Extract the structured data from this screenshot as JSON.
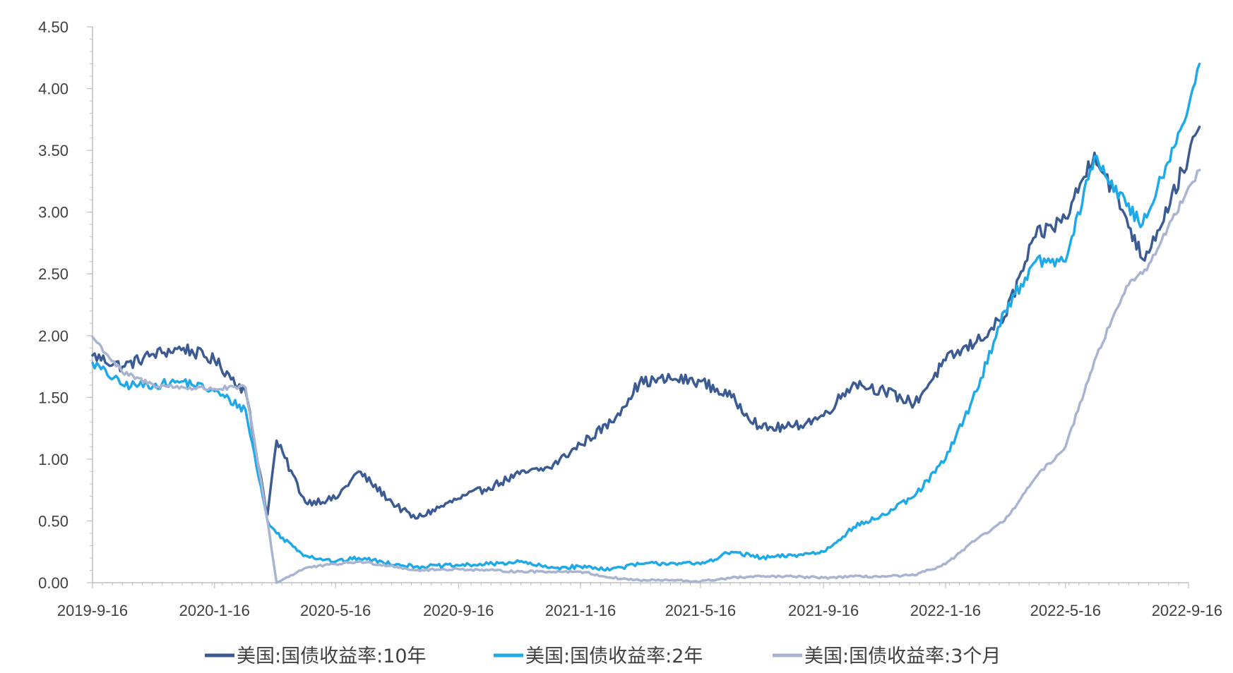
{
  "chart_data": {
    "type": "line",
    "title": "",
    "xlabel": "",
    "ylabel": "",
    "ylim": [
      0,
      4.5
    ],
    "y_ticks": [
      "0.00",
      "0.50",
      "1.00",
      "1.50",
      "2.00",
      "2.50",
      "3.00",
      "3.50",
      "4.00",
      "4.50"
    ],
    "x_ticks": [
      "2019-9-16",
      "2020-1-16",
      "2020-5-16",
      "2020-9-16",
      "2021-1-16",
      "2021-5-16",
      "2021-9-16",
      "2022-1-16",
      "2022-5-16",
      "2022-9-16"
    ],
    "grid": false,
    "legend_position": "bottom",
    "x": [
      "2019-9-16",
      "2019-10-16",
      "2019-11-16",
      "2019-12-16",
      "2020-1-16",
      "2020-2-16",
      "2020-3-9",
      "2020-3-18",
      "2020-4-16",
      "2020-5-16",
      "2020-6-8",
      "2020-7-16",
      "2020-8-4",
      "2020-9-16",
      "2020-10-16",
      "2020-11-16",
      "2020-12-16",
      "2021-1-16",
      "2021-2-16",
      "2021-3-16",
      "2021-4-16",
      "2021-5-16",
      "2021-6-16",
      "2021-7-16",
      "2021-8-16",
      "2021-9-16",
      "2021-10-16",
      "2021-11-16",
      "2021-12-16",
      "2022-1-16",
      "2022-2-16",
      "2022-3-16",
      "2022-4-16",
      "2022-5-16",
      "2022-6-14",
      "2022-7-16",
      "2022-8-1",
      "2022-8-16",
      "2022-9-16",
      "2022-9-27"
    ],
    "series": [
      {
        "name": "美国:国债收益率:10年",
        "color": "#3b5b92",
        "values": [
          1.84,
          1.75,
          1.85,
          1.9,
          1.8,
          1.55,
          0.55,
          1.15,
          0.65,
          0.68,
          0.9,
          0.62,
          0.52,
          0.68,
          0.77,
          0.88,
          0.93,
          1.12,
          1.3,
          1.62,
          1.65,
          1.63,
          1.5,
          1.25,
          1.26,
          1.35,
          1.62,
          1.55,
          1.45,
          1.8,
          1.95,
          2.15,
          2.8,
          2.95,
          3.48,
          2.95,
          2.62,
          2.85,
          3.45,
          3.69
        ]
      },
      {
        "name": "美国:国债收益率:2年",
        "color": "#1fa9e6",
        "values": [
          1.78,
          1.6,
          1.6,
          1.63,
          1.55,
          1.4,
          0.5,
          0.4,
          0.22,
          0.17,
          0.2,
          0.15,
          0.13,
          0.14,
          0.15,
          0.17,
          0.12,
          0.13,
          0.11,
          0.15,
          0.16,
          0.15,
          0.25,
          0.2,
          0.22,
          0.25,
          0.45,
          0.55,
          0.7,
          1.0,
          1.55,
          2.2,
          2.6,
          2.6,
          3.45,
          3.05,
          2.9,
          3.2,
          3.85,
          4.2
        ]
      },
      {
        "name": "美国:国债收益率:3个月",
        "color": "#a9b4d0",
        "values": [
          1.99,
          1.7,
          1.6,
          1.58,
          1.57,
          1.58,
          0.5,
          0.0,
          0.12,
          0.15,
          0.17,
          0.13,
          0.1,
          0.11,
          0.1,
          0.09,
          0.09,
          0.09,
          0.04,
          0.02,
          0.02,
          0.01,
          0.04,
          0.05,
          0.05,
          0.04,
          0.05,
          0.05,
          0.06,
          0.15,
          0.35,
          0.5,
          0.85,
          1.1,
          1.8,
          2.4,
          2.5,
          2.7,
          3.2,
          3.34
        ]
      }
    ]
  }
}
